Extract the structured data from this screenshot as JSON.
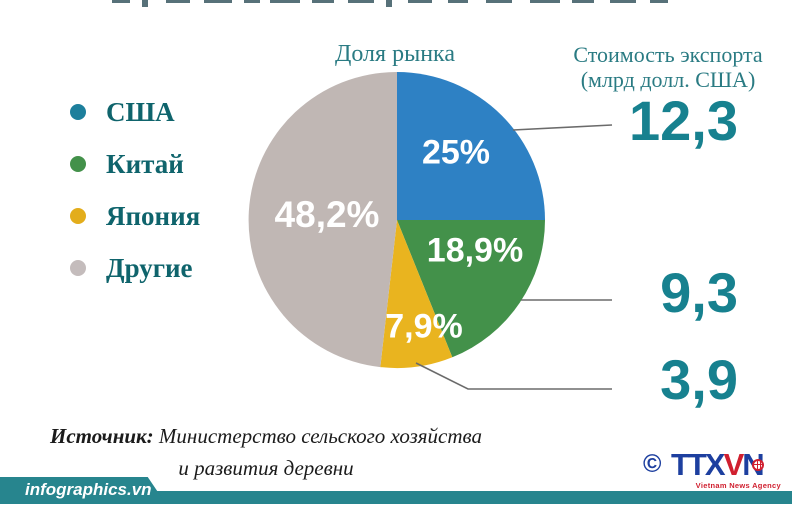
{
  "chart_data": {
    "type": "pie",
    "title": "Доля рынка",
    "values_header_line1": "Стоимость экспорта",
    "values_header_line2": "(млрд долл. США)",
    "start_angle_deg": 0,
    "direction": "clockwise",
    "legend_position": "left",
    "labels_inside": true,
    "categories": [
      "США",
      "Китай",
      "Япония",
      "Другие"
    ],
    "slices": [
      {
        "label": "США",
        "percent": 25.0,
        "percent_label": "25%",
        "export_value": "12,3",
        "color": "#2e81c4",
        "legend_color": "#1d7f9c"
      },
      {
        "label": "Китай",
        "percent": 18.9,
        "percent_label": "18,9%",
        "export_value": "9,3",
        "color": "#43914a",
        "legend_color": "#43914a"
      },
      {
        "label": "Япония",
        "percent": 7.9,
        "percent_label": "7,9%",
        "export_value": "3,9",
        "color": "#e9b41f",
        "legend_color": "#e3ad1b"
      },
      {
        "label": "Другие",
        "percent": 48.2,
        "percent_label": "48,2%",
        "export_value": null,
        "color": "#c0b7b4",
        "legend_color": "#c4bcbc"
      }
    ]
  },
  "source": {
    "label": "Источник:",
    "line1_rest": " Министерство сельского хозяйства",
    "line2": "и развития деревни"
  },
  "footer": {
    "brand": "infographics.vn"
  },
  "logo": {
    "copyright": "©",
    "part1": "TTX",
    "part2": "V",
    "part3": "N",
    "subtitle": "Vietnam News Agency"
  },
  "colors": {
    "accent_teal": "#27858e",
    "header_text": "#2a7b83",
    "value_text": "#17818f",
    "legend_text": "#0f646c",
    "callout_line": "#6b6b6b",
    "logo_blue": "#1d3f9f",
    "logo_red": "#d01f2f"
  }
}
